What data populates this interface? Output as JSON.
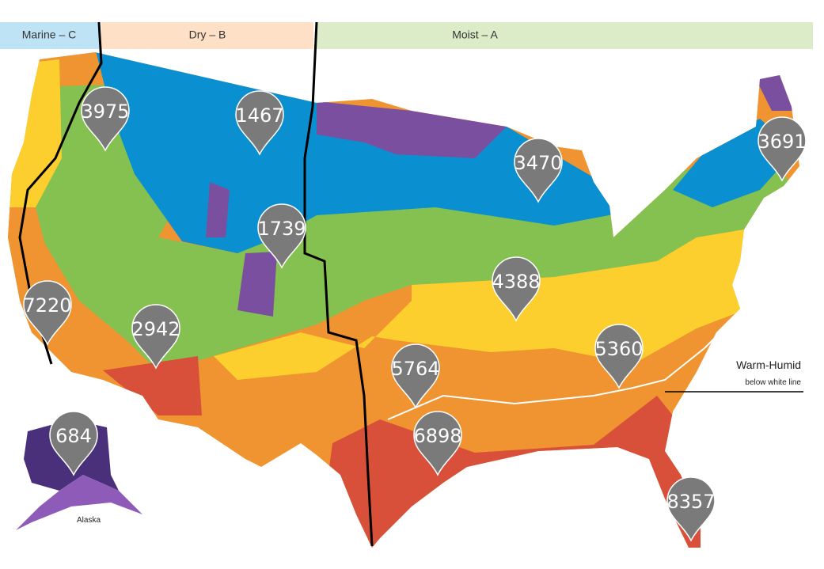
{
  "header": {
    "zones": [
      "Marine – C",
      "Dry – B",
      "Moist – A"
    ]
  },
  "annotation": {
    "title": "Warm-Humid",
    "subtitle": "below white line"
  },
  "inset": {
    "label": "Alaska"
  },
  "markers": [
    3975,
    1467,
    3470,
    3691,
    1739,
    4388,
    7220,
    2942,
    5764,
    5360,
    6898,
    684,
    8357
  ]
}
